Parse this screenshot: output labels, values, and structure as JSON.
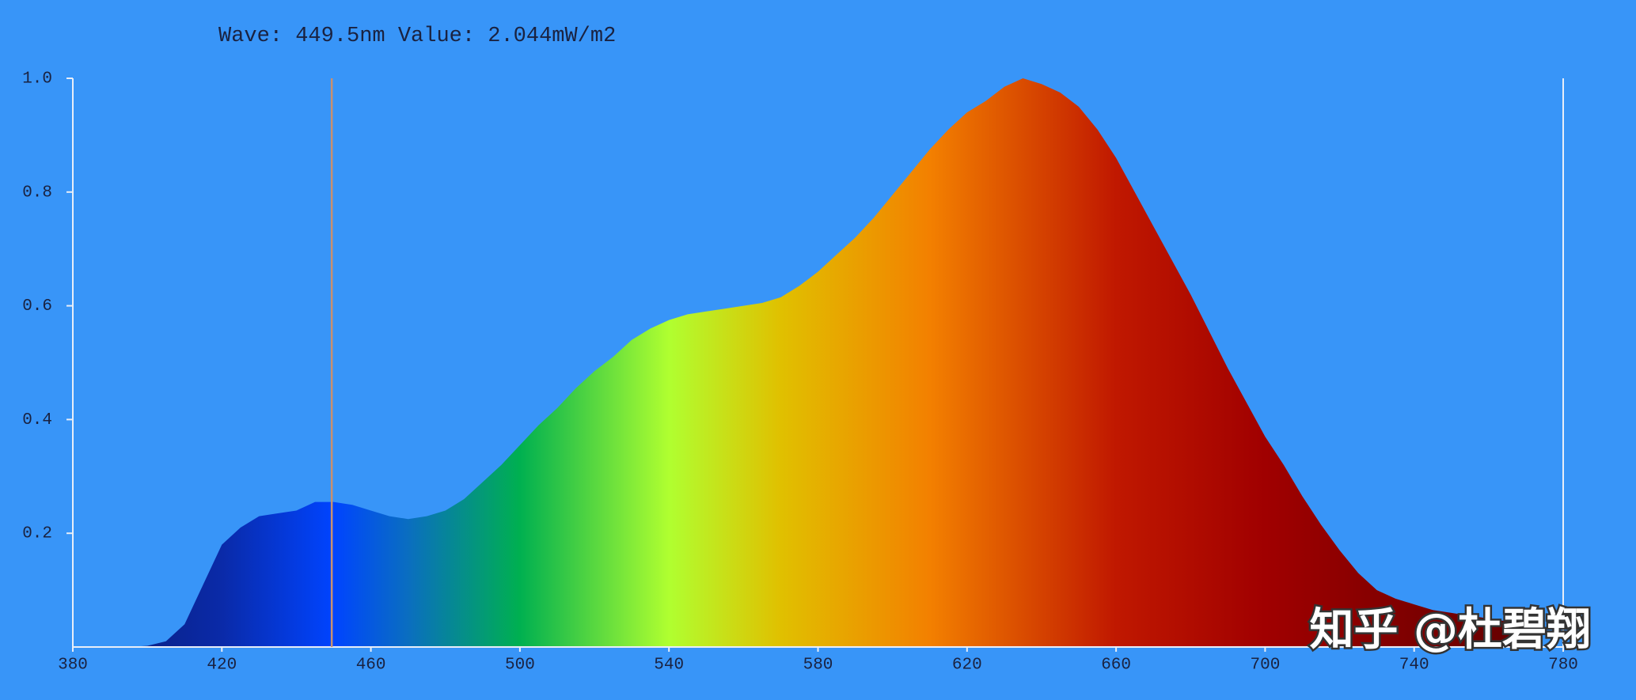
{
  "chart_data": {
    "type": "area",
    "title": "Wave: 449.5nm Value: 2.044mW/m2",
    "cursor": 449.5,
    "watermark": "知乎 @杜碧翔",
    "x": [
      380,
      385,
      390,
      395,
      400,
      405,
      410,
      415,
      420,
      425,
      430,
      435,
      440,
      445,
      450,
      455,
      460,
      465,
      470,
      475,
      480,
      485,
      490,
      495,
      500,
      505,
      510,
      515,
      520,
      525,
      530,
      535,
      540,
      545,
      550,
      555,
      560,
      565,
      570,
      575,
      580,
      585,
      590,
      595,
      600,
      605,
      610,
      615,
      620,
      625,
      630,
      635,
      640,
      645,
      650,
      655,
      660,
      665,
      670,
      675,
      680,
      685,
      690,
      695,
      700,
      705,
      710,
      715,
      720,
      725,
      730,
      735,
      740,
      745,
      750,
      755,
      760,
      765,
      770
    ],
    "series": [
      {
        "values": [
          0,
          0,
          0,
          0,
          0.002,
          0.01,
          0.04,
          0.11,
          0.18,
          0.21,
          0.23,
          0.235,
          0.24,
          0.255,
          0.255,
          0.25,
          0.24,
          0.23,
          0.225,
          0.23,
          0.24,
          0.26,
          0.29,
          0.32,
          0.355,
          0.39,
          0.42,
          0.455,
          0.485,
          0.51,
          0.54,
          0.56,
          0.575,
          0.585,
          0.59,
          0.595,
          0.6,
          0.605,
          0.615,
          0.635,
          0.66,
          0.69,
          0.72,
          0.755,
          0.795,
          0.835,
          0.875,
          0.91,
          0.94,
          0.96,
          0.985,
          1.0,
          0.99,
          0.975,
          0.95,
          0.91,
          0.86,
          0.8,
          0.74,
          0.68,
          0.62,
          0.555,
          0.49,
          0.43,
          0.37,
          0.32,
          0.265,
          0.215,
          0.17,
          0.13,
          0.1,
          0.085,
          0.075,
          0.065,
          0.06,
          0.055,
          0.05,
          0.045,
          0.04
        ]
      }
    ],
    "xlim": [
      380,
      780
    ],
    "xticks": [
      380,
      420,
      460,
      500,
      540,
      580,
      620,
      660,
      700,
      740,
      780
    ],
    "ylim": [
      0,
      1
    ],
    "yticks": [
      0.2,
      0.4,
      0.6,
      0.8,
      {
        "value": 1,
        "label": "1.0"
      }
    ]
  }
}
